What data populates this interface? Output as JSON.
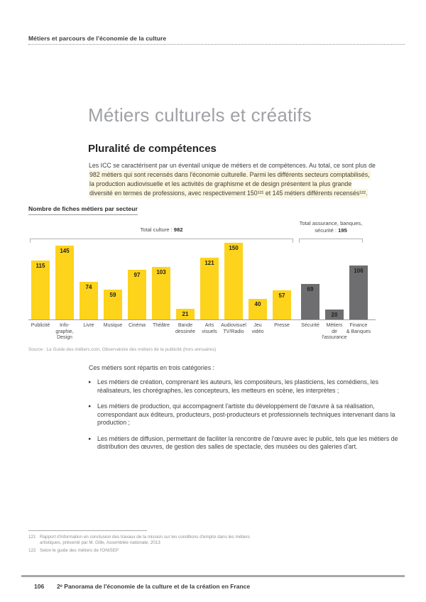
{
  "page": {
    "header": "Métiers et parcours de l'économie de la culture",
    "title": "Métiers culturels et créatifs",
    "section_heading": "Pluralité de compétences",
    "paragraph_lines": [
      "Les ICC se caractérisent par un éventail unique de métiers et de compétences. Au total, ce sont plus de",
      "982 métiers qui sont recensés dans l'économie culturelle. Parmi les différents secteurs comptabilisés,",
      "la production audiovisuelle et les activités de graphisme et de design présentent la plus grande",
      "diversité en termes de professions, avec respectivement 150¹²¹ et 145 métiers différents recensés¹²²."
    ],
    "intro_line": "Ces métiers sont répartis en trois catégories :",
    "bullets": [
      "Les métiers de création, comprenant les auteurs, les compositeurs, les plasticiens, les comédiens, les réalisateurs, les chorégraphes, les concepteurs, les metteurs en scène, les interprètes ;",
      "Les métiers de production, qui accompagnent l'artiste du développement de l'œuvre à sa réalisation, correspondant aux éditeurs, producteurs, post-producteurs et professionnels techniques intervenant dans la production ;",
      "Les métiers de diffusion, permettant de faciliter la rencontre de l'œuvre avec le public, tels que les métiers de distribution des œuvres, de gestion des salles de spectacle, des musées ou des galeries d'art."
    ],
    "bullet_marker": "▸",
    "footnotes": [
      {
        "num": "121",
        "text": "Rapport d'information en conclusion des travaux de la mission sur les conditions d'emploi dans les métiers artistiques, présenté par M. Gille, Assemblée nationale, 2013"
      },
      {
        "num": "122",
        "text": "Selon le guide des métiers de l'ONISEP"
      }
    ],
    "footer": {
      "page_number": "106",
      "text": "2ᵉ Panorama de l'économie de la culture et de la création en France"
    }
  },
  "chart_data": {
    "type": "bar",
    "title": "Nombre de fiches métiers par secteur",
    "source": "Source : Le Guide des métiers.com, Observatoire des métiers de la publicité (hors annuaires)",
    "categories": [
      "Publicité",
      "Info-\ngraphie,\nDesign",
      "Livre",
      "Musique",
      "Cinéma",
      "Théâtre",
      "Bande\ndessinée",
      "Arts\nvisuels",
      "Audiovisuel\nTV/Radio",
      "Jeu\nvidéo",
      "Presse",
      "Sécurité",
      "Métiers\nde\nl'assurance",
      "Finance\n& Banques"
    ],
    "values": [
      115,
      145,
      74,
      59,
      97,
      103,
      21,
      121,
      150,
      40,
      57,
      69,
      20,
      106
    ],
    "groups": [
      "culture",
      "culture",
      "culture",
      "culture",
      "culture",
      "culture",
      "culture",
      "culture",
      "culture",
      "culture",
      "culture",
      "autres",
      "autres",
      "autres"
    ],
    "colors": {
      "culture": "#fdd31b",
      "autres": "#6e6e70"
    },
    "annotations": [
      {
        "prefix": "Total culture : ",
        "value": "982"
      },
      {
        "prefix_line1": "Total assurance, banques,",
        "prefix_line2": "sécurité : ",
        "value": "195"
      }
    ],
    "ylim": [
      0,
      150
    ],
    "grid": false,
    "value_labels": "inside-top",
    "legend": "none"
  }
}
